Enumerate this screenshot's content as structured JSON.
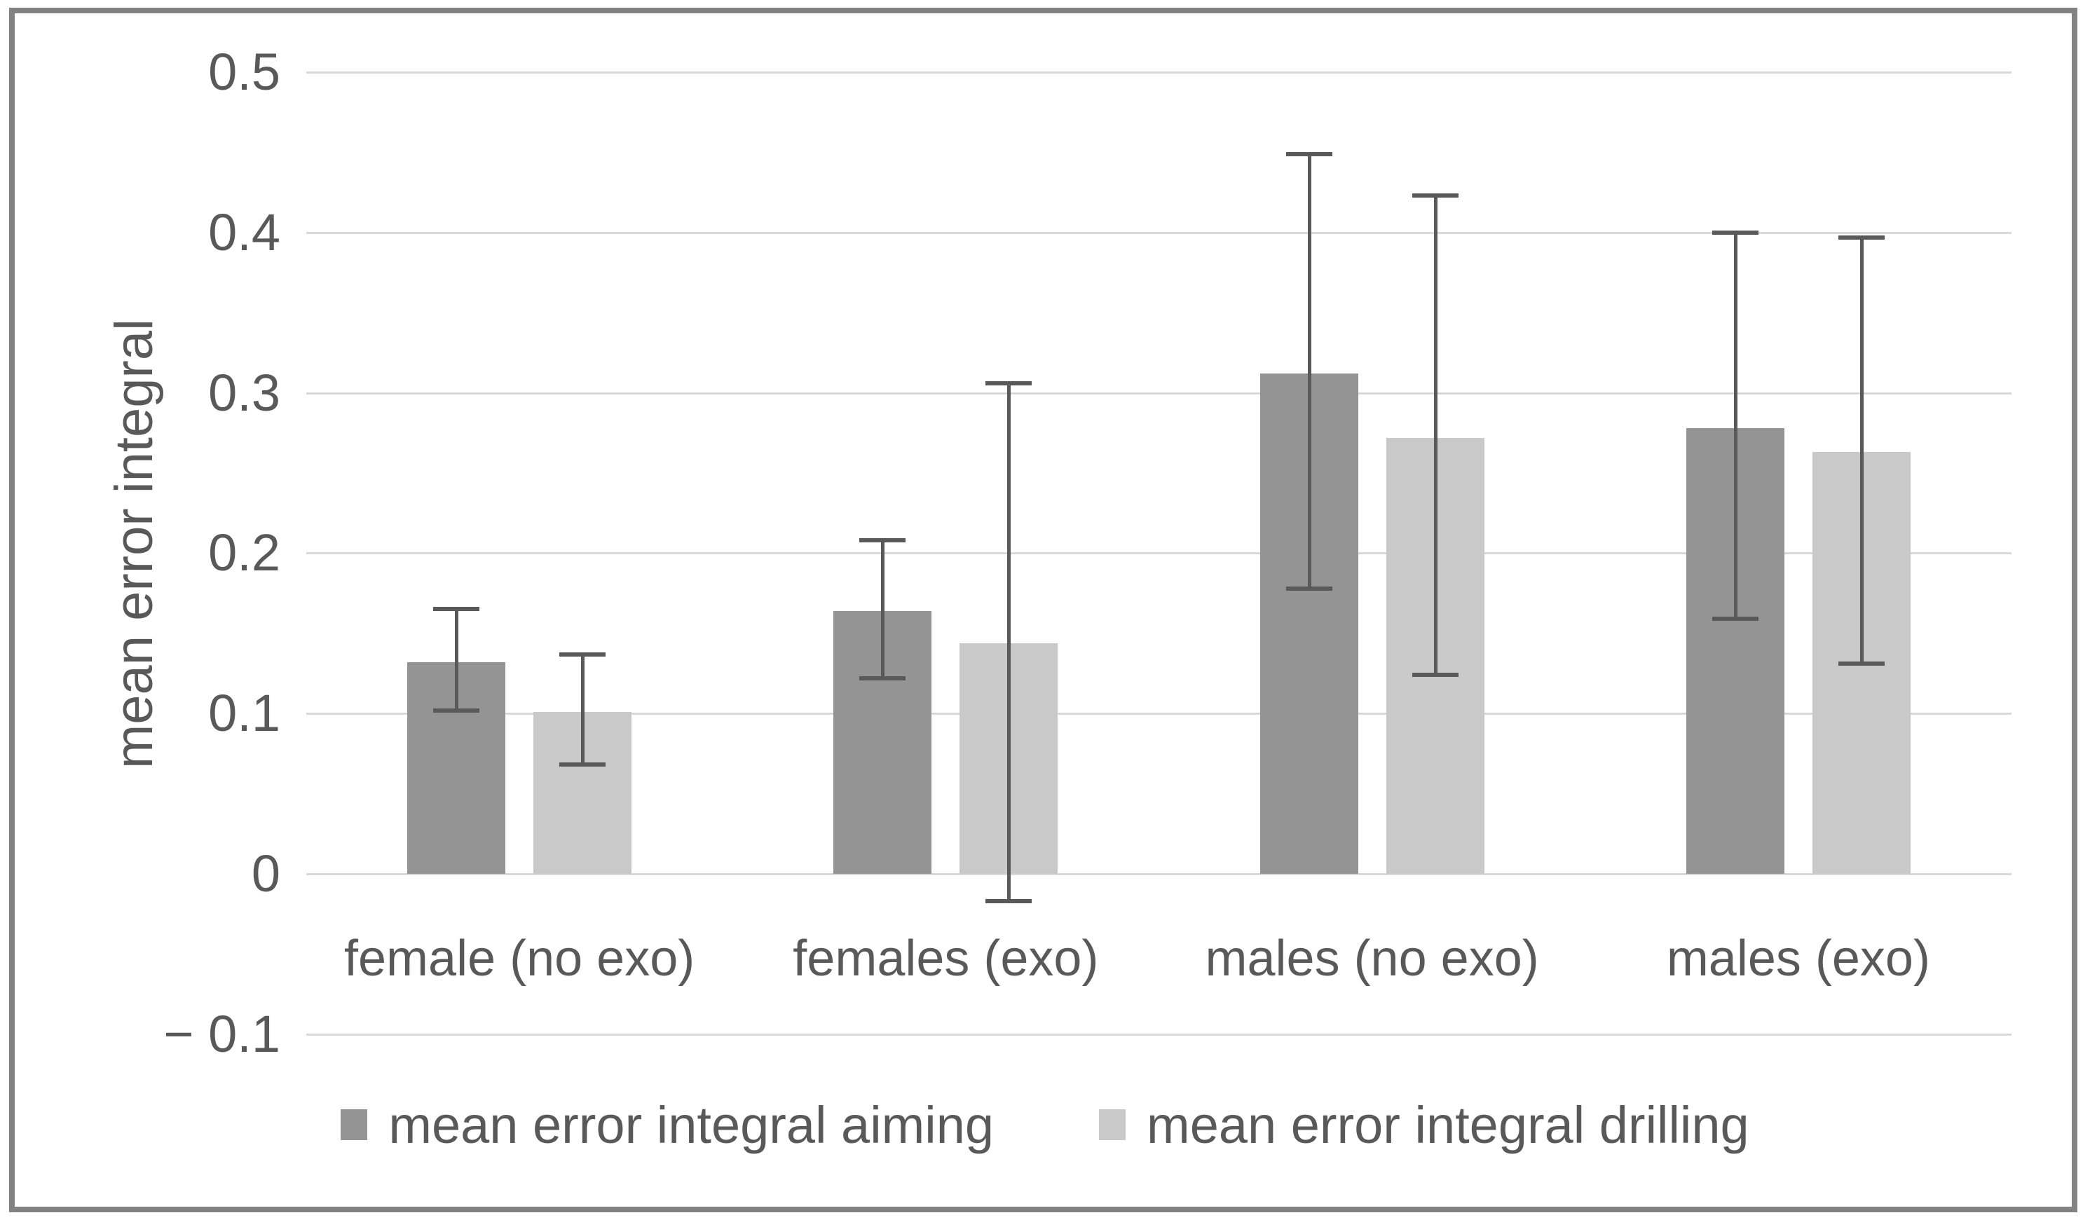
{
  "chart_data": {
    "type": "bar",
    "title": "",
    "ylabel": "mean error integral",
    "xlabel": "",
    "categories": [
      "female (no exo)",
      "females (exo)",
      "males (no exo)",
      "males (exo)"
    ],
    "series": [
      {
        "name": "mean error integral aiming",
        "color": "#949494",
        "values": [
          0.132,
          0.164,
          0.312,
          0.278
        ],
        "whisker_top": [
          0.165,
          0.208,
          0.449,
          0.4
        ],
        "whisker_bottom": [
          0.102,
          0.122,
          0.178,
          0.159
        ]
      },
      {
        "name": "mean error integral drilling",
        "color": "#c9c9c9",
        "values": [
          0.101,
          0.144,
          0.272,
          0.263
        ],
        "whisker_top": [
          0.137,
          0.306,
          0.423,
          0.397
        ],
        "whisker_bottom": [
          0.068,
          -0.017,
          0.124,
          0.131
        ]
      }
    ],
    "ylim": [
      -0.1,
      0.5
    ],
    "yticks": [
      {
        "value": 0.5,
        "label": "0.5"
      },
      {
        "value": 0.4,
        "label": "0.4"
      },
      {
        "value": 0.3,
        "label": "0.3"
      },
      {
        "value": 0.2,
        "label": "0.2"
      },
      {
        "value": 0.1,
        "label": "0.1"
      },
      {
        "value": 0.0,
        "label": "0"
      },
      {
        "value": -0.1,
        "label": "− 0.1"
      }
    ],
    "grid": true,
    "legend_position": "bottom",
    "gridline_color": "#d9d9d9",
    "error_bar_color": "#595959",
    "text_color": "#595959",
    "frame_color": "#828282"
  }
}
